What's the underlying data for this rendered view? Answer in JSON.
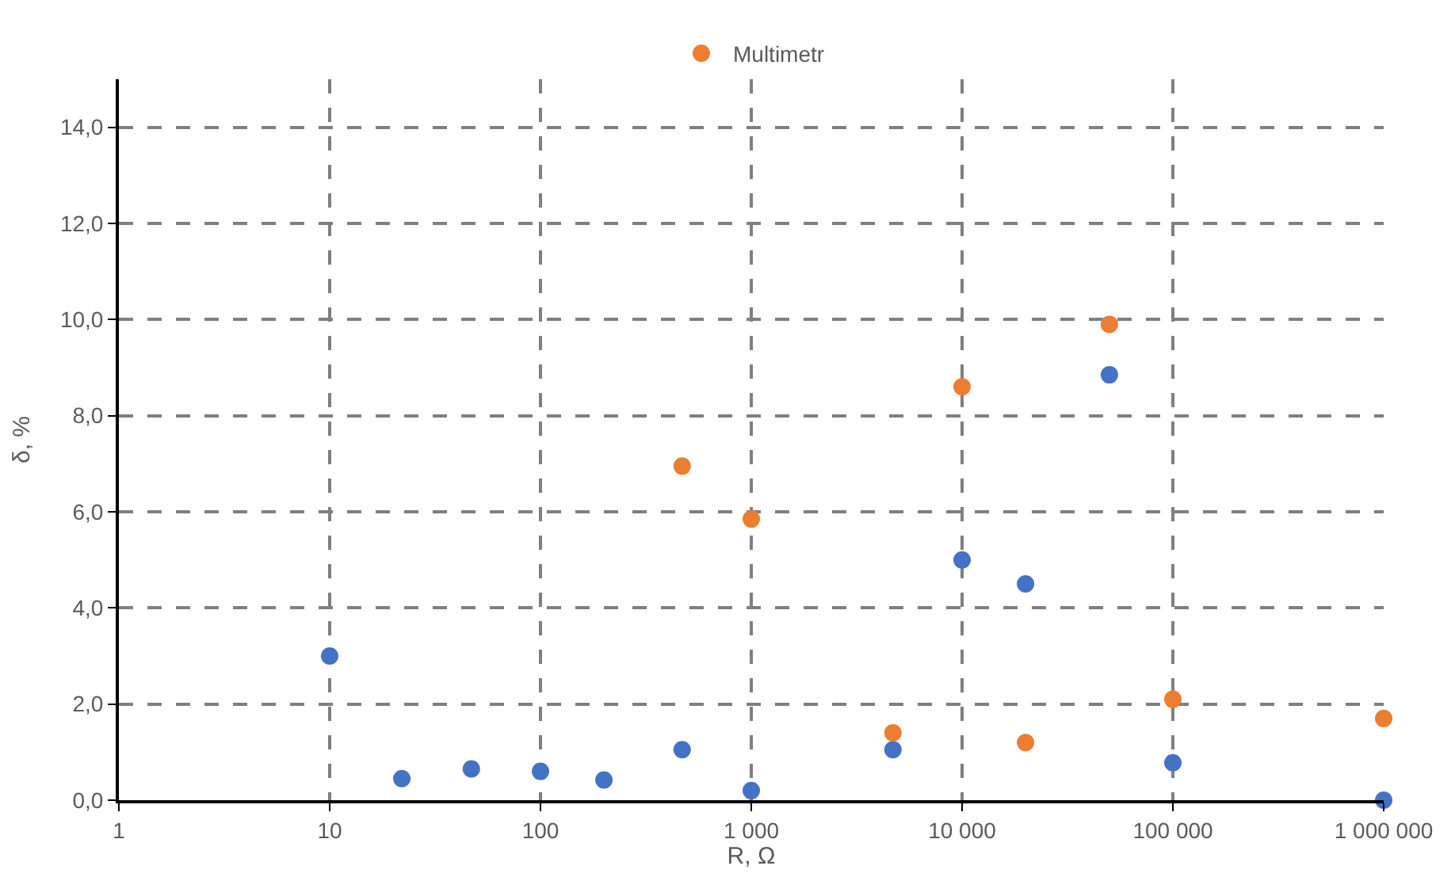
{
  "chart_data": {
    "type": "scatter",
    "xlabel": "R, Ω",
    "ylabel": "δ, %",
    "log": "x",
    "grid": true,
    "legend": "top",
    "marker": "circle",
    "series": [
      {
        "color": "#4472c4",
        "x": [
          10,
          22,
          47,
          100,
          200,
          470,
          1000,
          4700,
          10000,
          20000,
          50000,
          100000,
          1000000
        ],
        "values": [
          3.0,
          0.45,
          0.65,
          0.6,
          0.42,
          1.05,
          0.2,
          1.05,
          5.0,
          4.5,
          8.85,
          0.78,
          0.0
        ]
      },
      {
        "name": "Multimetr",
        "color": "#ed7d31",
        "x": [
          470,
          1000,
          4700,
          10000,
          20000,
          50000,
          100000,
          1000000
        ],
        "values": [
          6.95,
          5.85,
          1.4,
          8.6,
          1.2,
          9.9,
          2.1,
          1.7
        ]
      }
    ],
    "xlim": [
      1,
      1000000
    ],
    "xticks": [
      1,
      10,
      100,
      {
        "value": 1000,
        "label": "1 000"
      },
      {
        "value": 10000,
        "label": "10 000"
      },
      {
        "value": 100000,
        "label": "100 000"
      },
      {
        "value": 1000000,
        "label": "1 000 000"
      }
    ],
    "ylim": [
      0,
      15
    ],
    "yticks": [
      {
        "value": 0,
        "label": "0,0"
      },
      {
        "value": 2,
        "label": "2,0"
      },
      {
        "value": 4,
        "label": "4,0"
      },
      {
        "value": 6,
        "label": "6,0"
      },
      {
        "value": 8,
        "label": "8,0"
      },
      {
        "value": 10,
        "label": "10,0"
      },
      {
        "value": 12,
        "label": "12,0"
      },
      {
        "value": 14,
        "label": "14,0"
      }
    ]
  }
}
